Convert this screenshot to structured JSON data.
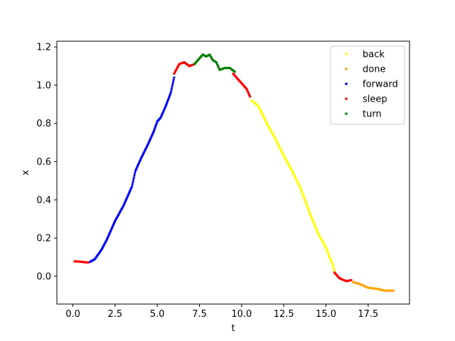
{
  "chart_data": {
    "type": "scatter",
    "title": "",
    "xlabel": "t",
    "ylabel": "x",
    "xlim": [
      -0.95,
      19.95
    ],
    "ylim": [
      -0.145,
      1.23
    ],
    "xticks": [
      0.0,
      2.5,
      5.0,
      7.5,
      10.0,
      12.5,
      15.0,
      17.5
    ],
    "xtick_labels": [
      "0.0",
      "2.5",
      "5.0",
      "7.5",
      "10.0",
      "12.5",
      "15.0",
      "17.5"
    ],
    "yticks": [
      0.0,
      0.2,
      0.4,
      0.6,
      0.8,
      1.0,
      1.2
    ],
    "ytick_labels": [
      "0.0",
      "0.2",
      "0.4",
      "0.6",
      "0.8",
      "1.0",
      "1.2"
    ],
    "grid": false,
    "legend_position": "top-right",
    "series": [
      {
        "name": "back",
        "color": "#ffff00",
        "points": [
          [
            10.6,
            0.92
          ],
          [
            11.0,
            0.89
          ],
          [
            11.5,
            0.8
          ],
          [
            12.0,
            0.72
          ],
          [
            12.5,
            0.63
          ],
          [
            13.0,
            0.55
          ],
          [
            13.5,
            0.46
          ],
          [
            14.0,
            0.34
          ],
          [
            14.5,
            0.23
          ],
          [
            15.0,
            0.15
          ],
          [
            15.4,
            0.06
          ],
          [
            15.5,
            0.03
          ]
        ]
      },
      {
        "name": "done",
        "color": "#ffa500",
        "points": [
          [
            16.6,
            -0.03
          ],
          [
            17.0,
            -0.04
          ],
          [
            17.5,
            -0.06
          ],
          [
            18.0,
            -0.065
          ],
          [
            18.5,
            -0.075
          ],
          [
            19.0,
            -0.075
          ]
        ]
      },
      {
        "name": "forward",
        "color": "#0000ff",
        "points": [
          [
            1.0,
            0.075
          ],
          [
            1.3,
            0.09
          ],
          [
            1.7,
            0.14
          ],
          [
            2.0,
            0.19
          ],
          [
            2.5,
            0.29
          ],
          [
            3.0,
            0.37
          ],
          [
            3.5,
            0.47
          ],
          [
            3.7,
            0.55
          ],
          [
            4.0,
            0.61
          ],
          [
            4.5,
            0.7
          ],
          [
            4.8,
            0.76
          ],
          [
            5.0,
            0.81
          ],
          [
            5.2,
            0.83
          ],
          [
            5.5,
            0.89
          ],
          [
            5.8,
            0.96
          ],
          [
            6.0,
            1.04
          ]
        ]
      },
      {
        "name": "sleep",
        "color": "#ff0000",
        "points": [
          [
            0.1,
            0.078
          ],
          [
            0.3,
            0.078
          ],
          [
            0.6,
            0.075
          ],
          [
            0.9,
            0.072
          ],
          [
            6.0,
            1.06
          ],
          [
            6.3,
            1.11
          ],
          [
            6.6,
            1.12
          ],
          [
            6.9,
            1.1
          ],
          [
            7.2,
            1.11
          ],
          [
            9.5,
            1.06
          ],
          [
            9.8,
            1.03
          ],
          [
            10.0,
            1.01
          ],
          [
            10.3,
            0.98
          ],
          [
            10.5,
            0.94
          ],
          [
            15.5,
            0.02
          ],
          [
            15.8,
            -0.01
          ],
          [
            16.2,
            -0.025
          ],
          [
            16.5,
            -0.02
          ]
        ]
      },
      {
        "name": "turn",
        "color": "#008000",
        "points": [
          [
            7.2,
            1.11
          ],
          [
            7.5,
            1.14
          ],
          [
            7.7,
            1.16
          ],
          [
            7.9,
            1.15
          ],
          [
            8.1,
            1.16
          ],
          [
            8.3,
            1.13
          ],
          [
            8.5,
            1.12
          ],
          [
            8.7,
            1.08
          ],
          [
            9.0,
            1.09
          ],
          [
            9.3,
            1.09
          ],
          [
            9.6,
            1.07
          ]
        ]
      }
    ]
  }
}
